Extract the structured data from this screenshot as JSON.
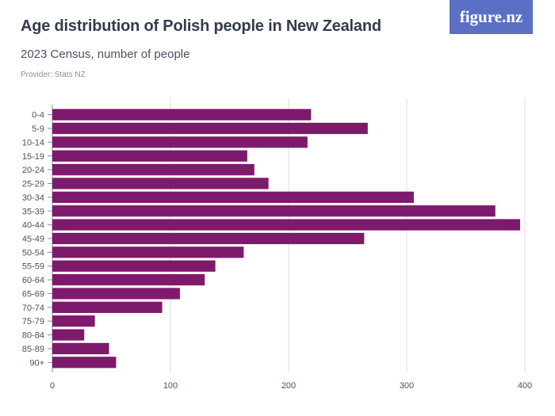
{
  "header": {
    "title": "Age distribution of Polish people in New Zealand",
    "subtitle": "2023 Census, number of people",
    "provider": "Provider: Stats NZ",
    "logo": "figure.nz"
  },
  "colors": {
    "bar": "#7e1a6c",
    "grid": "#dcdcdc",
    "axis": "#8a8f9c",
    "logo_bg": "#5b6fc4"
  },
  "chart_data": {
    "type": "bar",
    "orientation": "horizontal",
    "title": "Age distribution of Polish people in New Zealand",
    "subtitle": "2023 Census, number of people",
    "categories": [
      "0-4",
      "5-9",
      "10-14",
      "15-19",
      "20-24",
      "25-29",
      "30-34",
      "35-39",
      "40-44",
      "45-49",
      "50-54",
      "55-59",
      "60-64",
      "65-69",
      "70-74",
      "75-79",
      "80-84",
      "85-89",
      "90+"
    ],
    "values": [
      219,
      267,
      216,
      165,
      171,
      183,
      306,
      375,
      396,
      264,
      162,
      138,
      129,
      108,
      93,
      36,
      27,
      48,
      54
    ],
    "xlim": [
      0,
      400
    ],
    "xticks": [
      0,
      100,
      200,
      300,
      400
    ],
    "grid": true,
    "legend": "none"
  }
}
